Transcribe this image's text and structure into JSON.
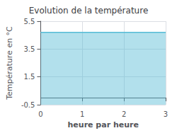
{
  "chart_data": {
    "type": "area",
    "title": "Evolution de la température",
    "xlabel": "heure par heure",
    "ylabel": "Température en °C",
    "x": [
      0,
      1,
      2,
      3
    ],
    "values": [
      4.7,
      4.7,
      4.7,
      4.7
    ],
    "color": "#55bbd5",
    "xlim": [
      0,
      3
    ],
    "ylim": [
      -0.5,
      5.5
    ],
    "xticks": [
      0,
      1,
      2,
      3
    ],
    "yticks": [
      -0.5,
      1.5,
      3.5,
      5.5
    ],
    "grid": true
  }
}
